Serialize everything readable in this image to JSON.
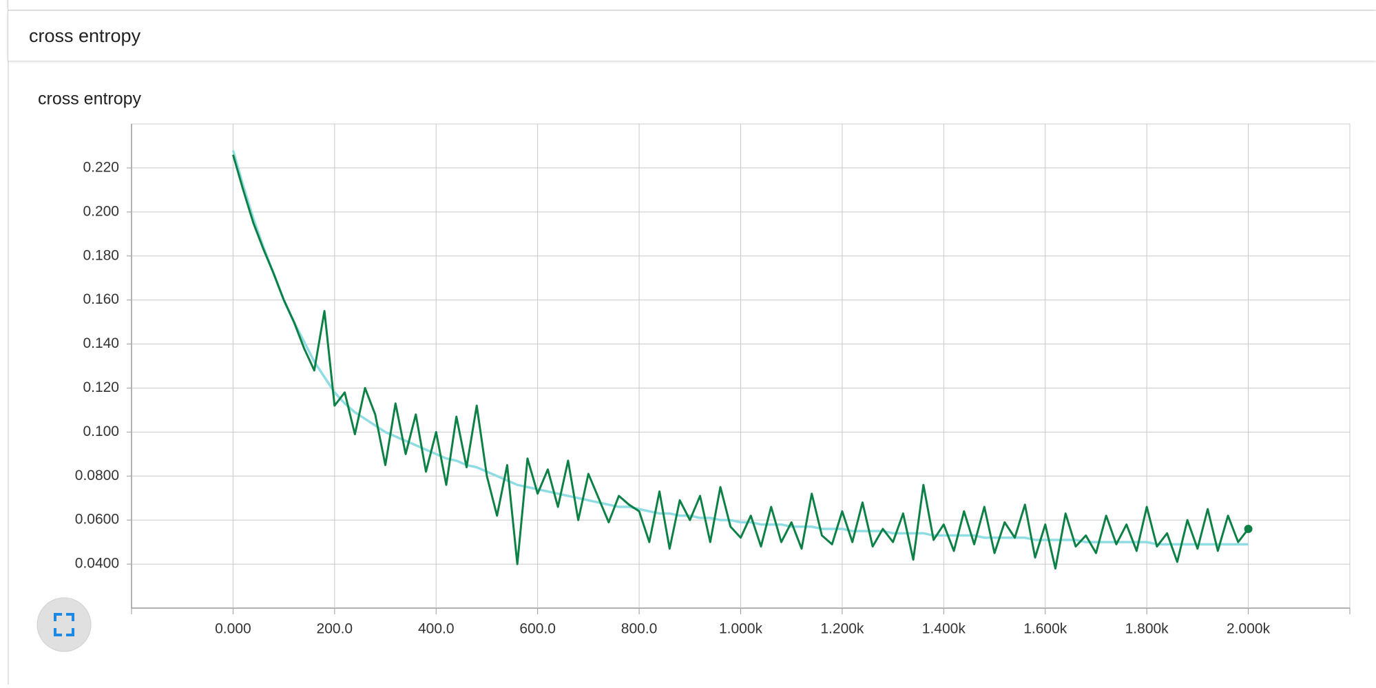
{
  "header": {
    "title": "cross entropy"
  },
  "chart_data": {
    "type": "line",
    "title": "cross entropy",
    "x": [
      0,
      20,
      40,
      60,
      80,
      100,
      120,
      140,
      160,
      180,
      200,
      220,
      240,
      260,
      280,
      300,
      320,
      340,
      360,
      380,
      400,
      420,
      440,
      460,
      480,
      500,
      520,
      540,
      560,
      580,
      600,
      620,
      640,
      660,
      680,
      700,
      720,
      740,
      760,
      780,
      800,
      820,
      840,
      860,
      880,
      900,
      920,
      940,
      960,
      980,
      1000,
      1020,
      1040,
      1060,
      1080,
      1100,
      1120,
      1140,
      1160,
      1180,
      1200,
      1220,
      1240,
      1260,
      1280,
      1300,
      1320,
      1340,
      1360,
      1380,
      1400,
      1420,
      1440,
      1460,
      1480,
      1500,
      1520,
      1540,
      1560,
      1580,
      1600,
      1620,
      1640,
      1660,
      1680,
      1700,
      1720,
      1740,
      1760,
      1780,
      1800,
      1820,
      1840,
      1860,
      1880,
      1900,
      1920,
      1940,
      1960,
      1980,
      2000
    ],
    "series": [
      {
        "color": "#8fdde3",
        "values": [
          0.228,
          0.212,
          0.197,
          0.184,
          0.172,
          0.16,
          0.15,
          0.141,
          0.132,
          0.125,
          0.118,
          0.113,
          0.109,
          0.106,
          0.103,
          0.1,
          0.098,
          0.096,
          0.094,
          0.092,
          0.09,
          0.088,
          0.087,
          0.085,
          0.084,
          0.082,
          0.08,
          0.078,
          0.076,
          0.075,
          0.074,
          0.073,
          0.072,
          0.071,
          0.07,
          0.069,
          0.068,
          0.067,
          0.066,
          0.066,
          0.065,
          0.064,
          0.063,
          0.063,
          0.062,
          0.062,
          0.061,
          0.061,
          0.06,
          0.06,
          0.059,
          0.059,
          0.058,
          0.058,
          0.058,
          0.057,
          0.057,
          0.057,
          0.056,
          0.056,
          0.056,
          0.055,
          0.055,
          0.055,
          0.055,
          0.054,
          0.054,
          0.054,
          0.054,
          0.053,
          0.053,
          0.053,
          0.053,
          0.053,
          0.052,
          0.052,
          0.052,
          0.052,
          0.052,
          0.051,
          0.051,
          0.051,
          0.051,
          0.051,
          0.05,
          0.05,
          0.05,
          0.05,
          0.05,
          0.05,
          0.05,
          0.049,
          0.049,
          0.049,
          0.049,
          0.049,
          0.049,
          0.049,
          0.049,
          0.049,
          0.049
        ]
      },
      {
        "color": "#0d8046",
        "values": [
          0.226,
          0.21,
          0.195,
          0.183,
          0.172,
          0.16,
          0.15,
          0.138,
          0.128,
          0.155,
          0.112,
          0.118,
          0.099,
          0.12,
          0.108,
          0.085,
          0.113,
          0.09,
          0.108,
          0.082,
          0.1,
          0.076,
          0.107,
          0.084,
          0.112,
          0.08,
          0.062,
          0.085,
          0.04,
          0.088,
          0.072,
          0.083,
          0.066,
          0.087,
          0.06,
          0.081,
          0.07,
          0.059,
          0.071,
          0.067,
          0.064,
          0.05,
          0.073,
          0.047,
          0.069,
          0.06,
          0.071,
          0.05,
          0.075,
          0.057,
          0.052,
          0.062,
          0.048,
          0.066,
          0.05,
          0.059,
          0.047,
          0.072,
          0.053,
          0.049,
          0.064,
          0.05,
          0.068,
          0.048,
          0.056,
          0.05,
          0.063,
          0.042,
          0.076,
          0.051,
          0.058,
          0.046,
          0.064,
          0.049,
          0.066,
          0.045,
          0.059,
          0.052,
          0.067,
          0.043,
          0.058,
          0.038,
          0.063,
          0.048,
          0.053,
          0.045,
          0.062,
          0.049,
          0.058,
          0.046,
          0.066,
          0.048,
          0.054,
          0.041,
          0.06,
          0.047,
          0.065,
          0.046,
          0.062,
          0.05,
          0.056
        ]
      }
    ],
    "xlim": [
      -200,
      2200
    ],
    "ylim": [
      0.02,
      0.24
    ],
    "xticks": [
      {
        "value": 0,
        "label": "0.000"
      },
      {
        "value": 200,
        "label": "200.0"
      },
      {
        "value": 400,
        "label": "400.0"
      },
      {
        "value": 600,
        "label": "600.0"
      },
      {
        "value": 800,
        "label": "800.0"
      },
      {
        "value": 1000,
        "label": "1.000k"
      },
      {
        "value": 1200,
        "label": "1.200k"
      },
      {
        "value": 1400,
        "label": "1.400k"
      },
      {
        "value": 1600,
        "label": "1.600k"
      },
      {
        "value": 1800,
        "label": "1.800k"
      },
      {
        "value": 2000,
        "label": "2.000k"
      }
    ],
    "yticks": [
      {
        "value": 0.04,
        "label": "0.0400"
      },
      {
        "value": 0.06,
        "label": "0.0600"
      },
      {
        "value": 0.08,
        "label": "0.0800"
      },
      {
        "value": 0.1,
        "label": "0.100"
      },
      {
        "value": 0.12,
        "label": "0.120"
      },
      {
        "value": 0.14,
        "label": "0.140"
      },
      {
        "value": 0.16,
        "label": "0.160"
      },
      {
        "value": 0.18,
        "label": "0.180"
      },
      {
        "value": 0.2,
        "label": "0.200"
      },
      {
        "value": 0.22,
        "label": "0.220"
      }
    ],
    "grid": true
  }
}
